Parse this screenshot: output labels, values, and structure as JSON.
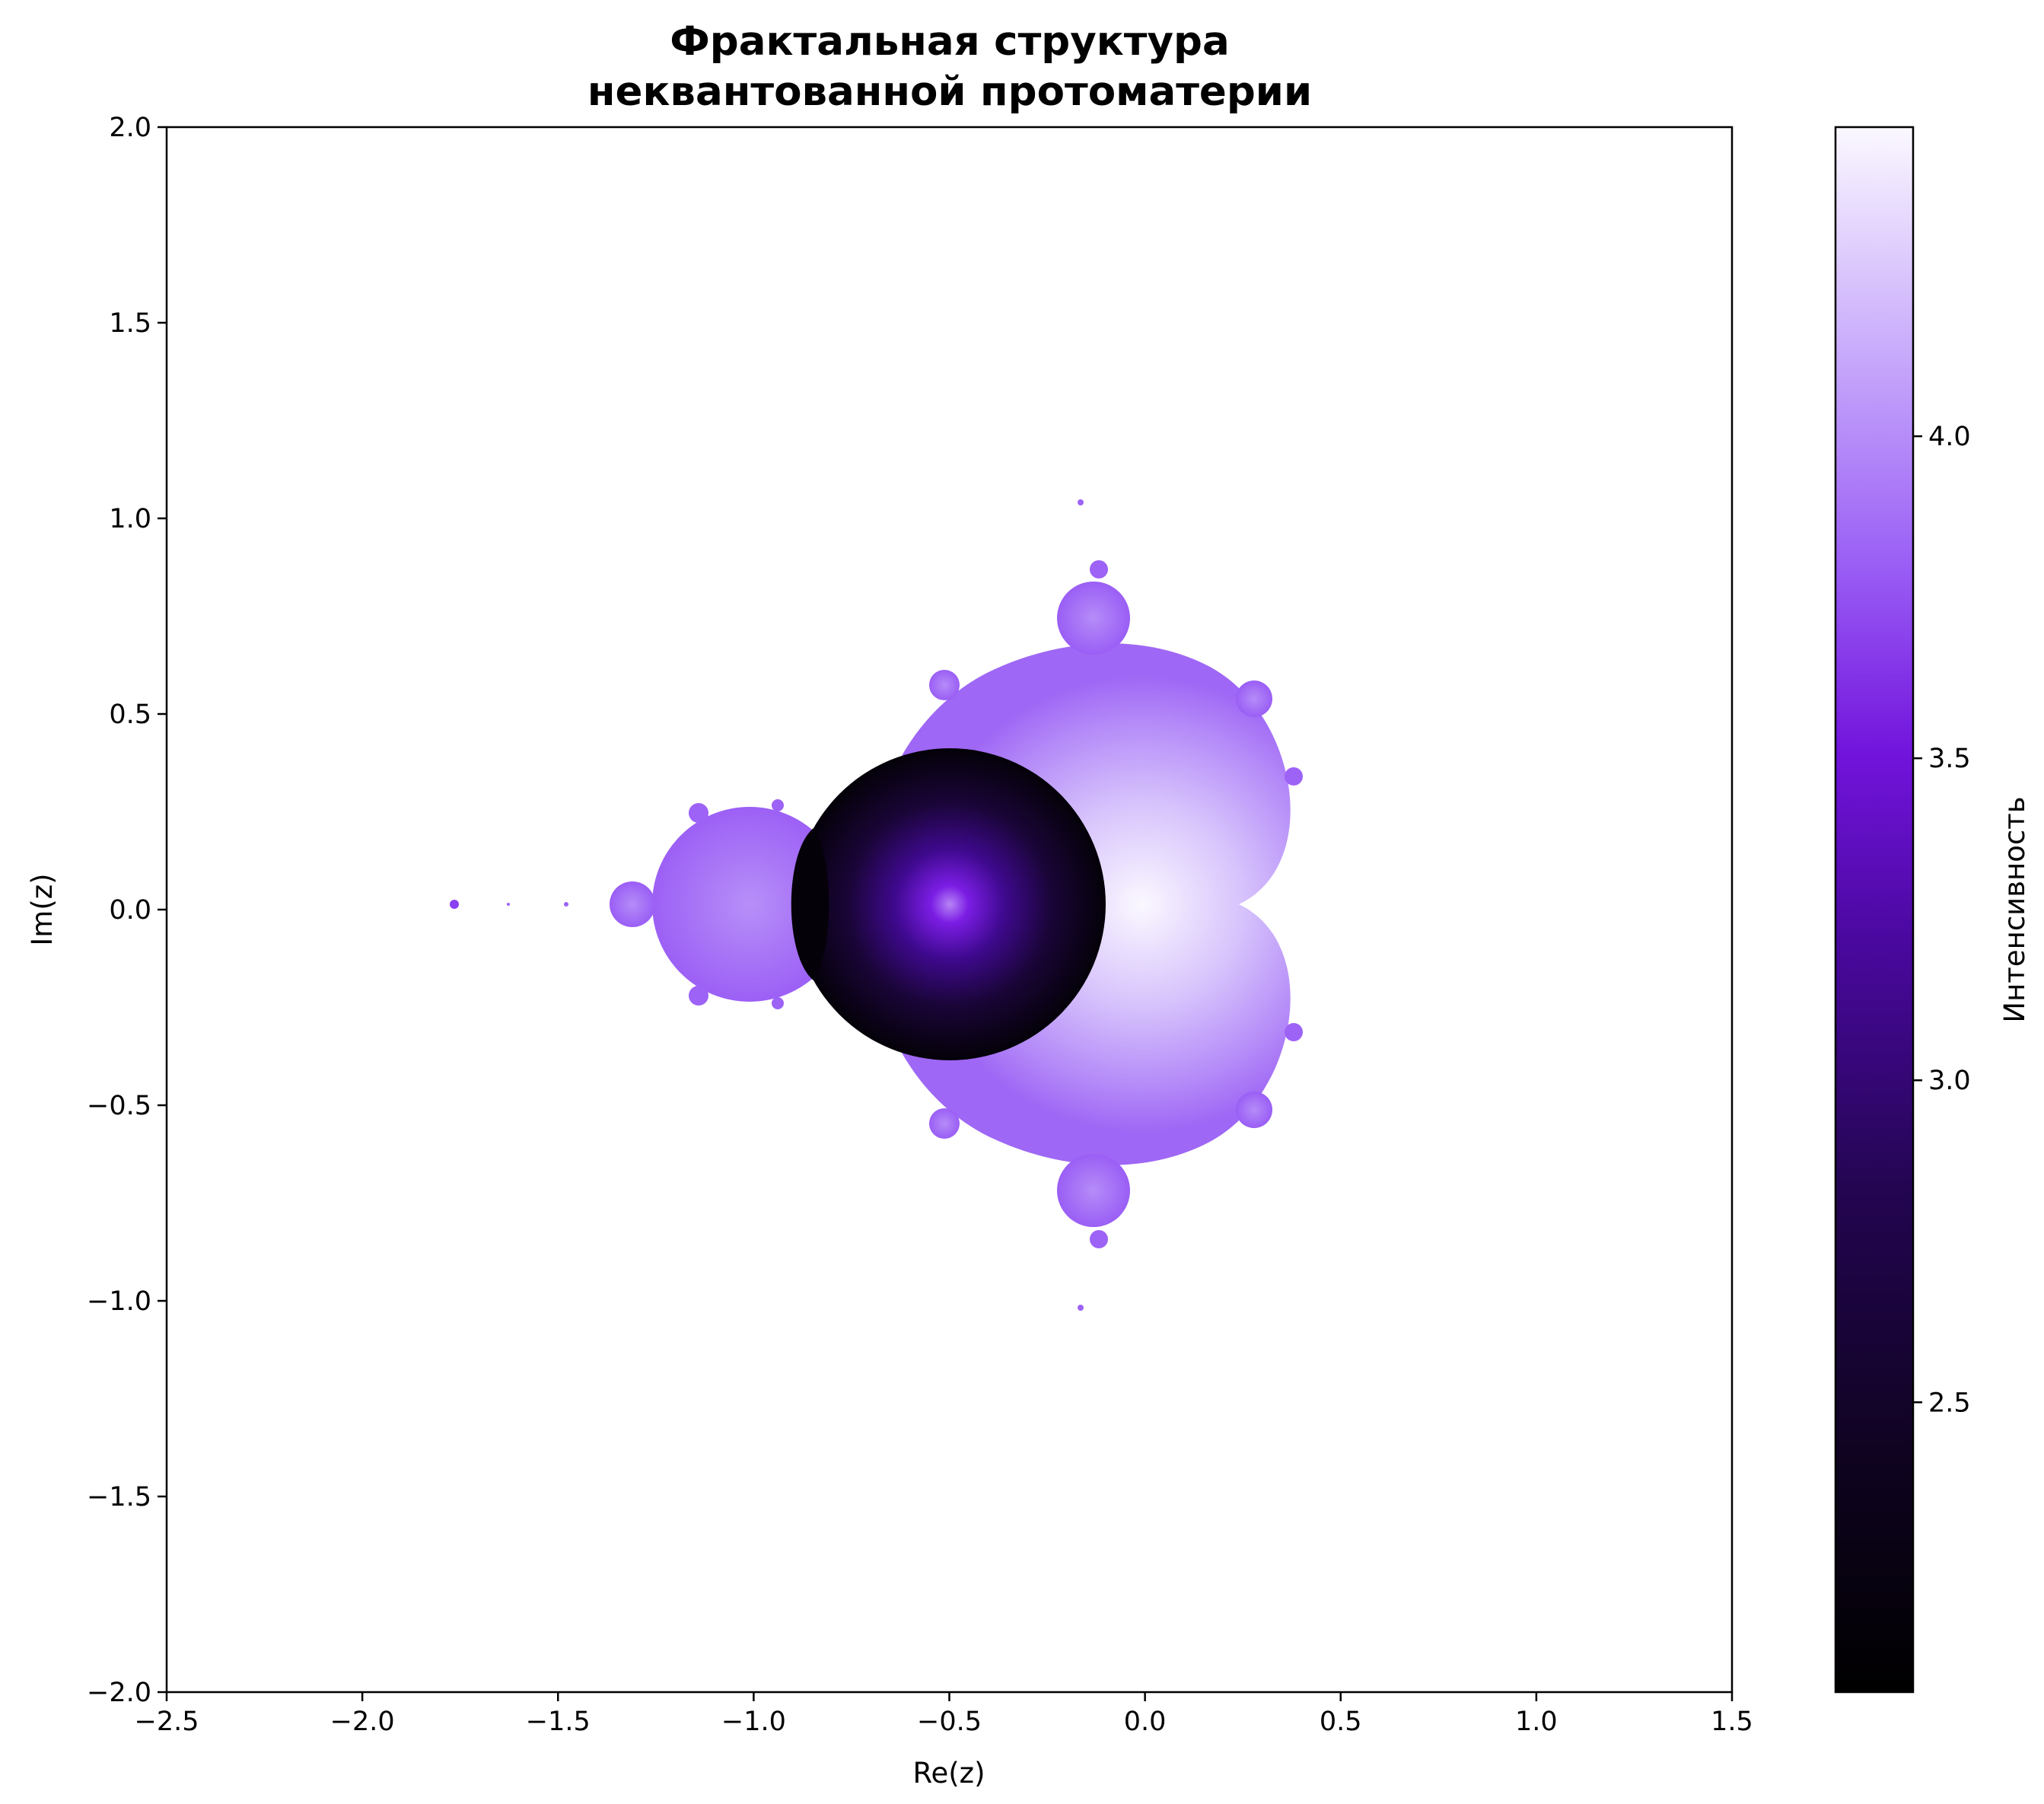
{
  "chart_data": {
    "type": "heatmap",
    "title_lines": [
      "Фрактальная структура",
      "неквантованной протоматерии"
    ],
    "xlabel": "Re(z)",
    "ylabel": "Im(z)",
    "xlim": [
      -2.5,
      1.5
    ],
    "ylim": [
      -2.0,
      2.0
    ],
    "x_ticks": [
      -2.5,
      -2.0,
      -1.5,
      -1.0,
      -0.5,
      0.0,
      0.5,
      1.0,
      1.5
    ],
    "y_ticks": [
      -2.0,
      -1.5,
      -1.0,
      -0.5,
      0.0,
      0.5,
      1.0,
      1.5,
      2.0
    ],
    "x_tick_labels": [
      "−2.5",
      "−2.0",
      "−1.5",
      "−1.0",
      "−0.5",
      "0.0",
      "0.5",
      "1.0",
      "1.5"
    ],
    "y_tick_labels": [
      "−2.0",
      "−1.5",
      "−1.0",
      "−0.5",
      "0.0",
      "0.5",
      "1.0",
      "1.5",
      "2.0"
    ],
    "grid": false,
    "colorbar": {
      "label": "Интенсивность",
      "range": [
        2.05,
        4.48
      ],
      "ticks": [
        2.5,
        3.0,
        3.5,
        4.0
      ],
      "tick_labels": [
        "2.5",
        "3.0",
        "3.5",
        "4.0"
      ],
      "colormap": [
        "#000000",
        "#1e0440",
        "#3b0690",
        "#6a0bd8",
        "#9a5cf5",
        "#c9a8fb",
        "#fbf8ff"
      ]
    },
    "regions": [
      {
        "shape": "main-cardioid",
        "center": [
          0.0,
          0.0
        ],
        "value": 4.45,
        "edge_value": 3.85
      },
      {
        "shape": "disk",
        "center": [
          -1.0,
          0.0
        ],
        "radius": 0.25,
        "value": 3.95,
        "edge_value": 3.85
      },
      {
        "shape": "dark-disk",
        "center": [
          -0.5,
          0.0
        ],
        "radius": 0.4,
        "value": 3.8,
        "edge_value": 2.05
      },
      {
        "shape": "dark-lens",
        "center": [
          -0.85,
          0.0
        ],
        "value": 2.05
      },
      {
        "shape": "disk",
        "center": [
          -1.31,
          0.0
        ],
        "radius": 0.06,
        "value": 3.8
      },
      {
        "shape": "disk",
        "center": [
          -0.12,
          0.74
        ],
        "radius": 0.094,
        "value": 3.85
      },
      {
        "shape": "disk",
        "center": [
          -0.12,
          -0.74
        ],
        "radius": 0.094,
        "value": 3.85
      },
      {
        "shape": "disk",
        "center": [
          0.28,
          0.53
        ],
        "radius": 0.044,
        "value": 3.8
      },
      {
        "shape": "disk",
        "center": [
          0.28,
          -0.53
        ],
        "radius": 0.044,
        "value": 3.8
      },
      {
        "shape": "disk",
        "center": [
          -1.76,
          0.0
        ],
        "radius": 0.012,
        "value": 3.6
      }
    ],
    "colors": {
      "set_fill": "#9d62f6",
      "background": "#ffffff"
    }
  }
}
